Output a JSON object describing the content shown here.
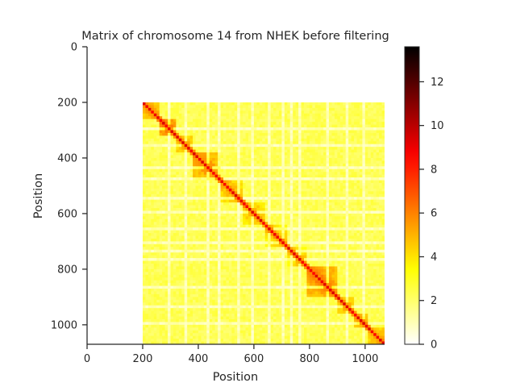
{
  "chart_data": {
    "type": "heatmap",
    "title": "Matrix of chromosome 14 from NHEK before filtering",
    "xlabel": "Position",
    "ylabel": "Position",
    "xlim": [
      0,
      1070
    ],
    "ylim": [
      1070,
      0
    ],
    "x_ticks": [
      0,
      200,
      400,
      600,
      800,
      1000
    ],
    "y_ticks": [
      0,
      200,
      400,
      600,
      800,
      1000
    ],
    "data_extent": [
      200,
      1070
    ],
    "colormap": "hot_r",
    "colorbar": {
      "range": [
        0,
        13.6
      ],
      "ticks": [
        0,
        2,
        4,
        6,
        8,
        10,
        12
      ]
    },
    "matrix_description": {
      "diagonal_value": 9,
      "background_value": 2.3,
      "domains": [
        {
          "start": 200,
          "end": 255,
          "value": 4.2
        },
        {
          "start": 250,
          "end": 320,
          "value": 5.0
        },
        {
          "start": 320,
          "end": 380,
          "value": 4.0
        },
        {
          "start": 380,
          "end": 480,
          "value": 4.6
        },
        {
          "start": 480,
          "end": 560,
          "value": 3.9
        },
        {
          "start": 560,
          "end": 640,
          "value": 3.8
        },
        {
          "start": 640,
          "end": 720,
          "value": 3.7
        },
        {
          "start": 720,
          "end": 790,
          "value": 3.6
        },
        {
          "start": 790,
          "end": 900,
          "value": 4.9
        },
        {
          "start": 900,
          "end": 960,
          "value": 3.9
        },
        {
          "start": 960,
          "end": 1010,
          "value": 4.2
        },
        {
          "start": 1010,
          "end": 1070,
          "value": 4.0
        }
      ],
      "low_coverage_bins": [
        290,
        350,
        430,
        470,
        540,
        590,
        650,
        700,
        730,
        760,
        860,
        930,
        990
      ]
    },
    "colors": {
      "axis": "#262626",
      "background": "#ffffff"
    }
  }
}
